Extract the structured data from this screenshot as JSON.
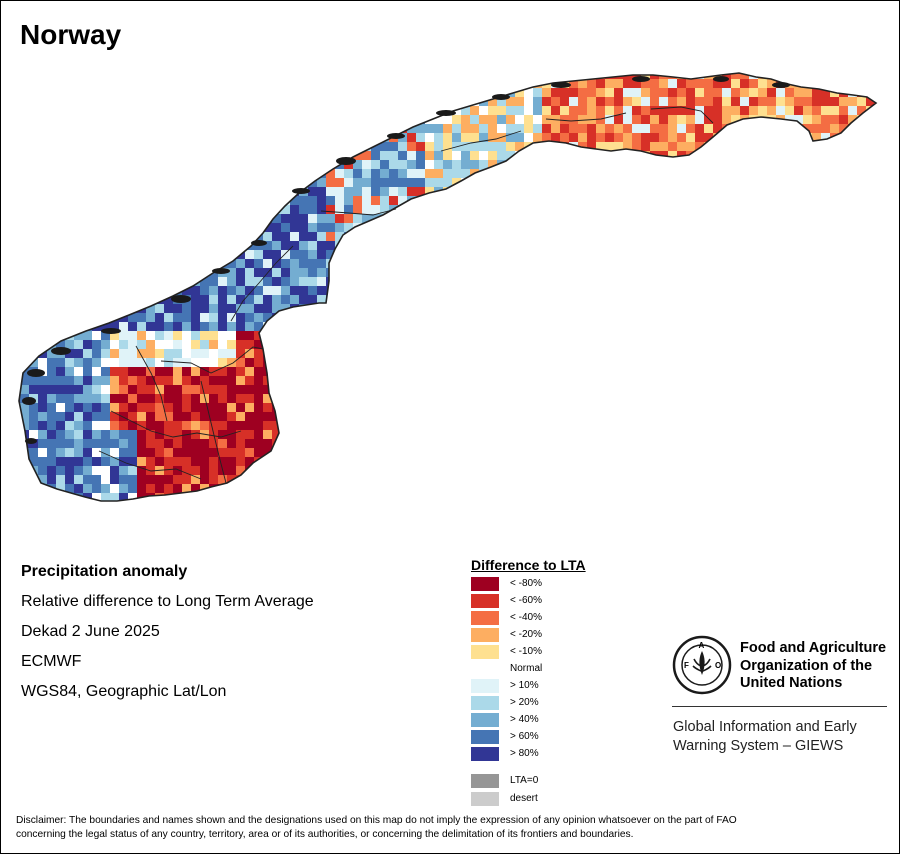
{
  "map": {
    "title": "Norway",
    "info": {
      "heading": "Precipitation anomaly",
      "subtitle": "Relative difference to Long Term Average",
      "period": "Dekad 2 June 2025",
      "source": "ECMWF",
      "projection": "WGS84, Geographic Lat/Lon"
    }
  },
  "legend": {
    "title": "Difference to LTA",
    "items": [
      {
        "label": "< -80%",
        "color": "#9e0021"
      },
      {
        "label": "< -60%",
        "color": "#d73027"
      },
      {
        "label": "< -40%",
        "color": "#f46d43"
      },
      {
        "label": "< -20%",
        "color": "#fdae61"
      },
      {
        "label": "< -10%",
        "color": "#fee090"
      },
      {
        "label": "Normal",
        "color": "#ffffff"
      },
      {
        "label": "> 10%",
        "color": "#e0f3f8"
      },
      {
        "label": "> 20%",
        "color": "#abd9e9"
      },
      {
        "label": "> 40%",
        "color": "#74add1"
      },
      {
        "label": "> 60%",
        "color": "#4575b4"
      },
      {
        "label": "> 80%",
        "color": "#313695"
      }
    ],
    "extra": [
      {
        "label": "LTA=0",
        "color": "#969696"
      },
      {
        "label": "desert",
        "color": "#cccccc"
      }
    ]
  },
  "org": {
    "logo_icon": "fao-logo-icon",
    "name_lines": [
      "Food and Agriculture",
      "Organization of the",
      "United Nations"
    ],
    "giews_lines": [
      "Global Information and Early",
      "Warning System – GIEWS"
    ]
  },
  "disclaimer_lines": [
    "Disclaimer: The boundaries and names shown and the designations used on this map do not imply the expression of any opinion whatsoever on the part of FAO",
    "concerning the legal status of any country, territory, area or of its authorities, or concerning the delimitation of its frontiers and boundaries."
  ]
}
